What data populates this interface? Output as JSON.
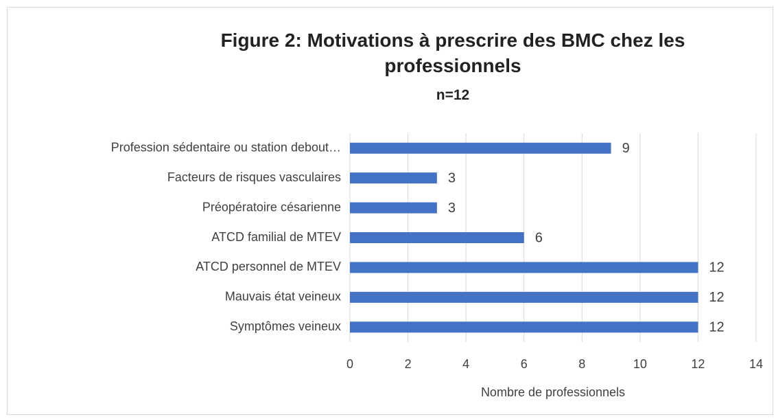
{
  "chart_data": {
    "type": "barh",
    "title": "Figure 2: Motivations à prescrire des BMC chez les professionnels",
    "subtitle": "n=12",
    "xlabel": "Nombre de professionnels",
    "categories": [
      "Profession sédentaire ou station debout…",
      "Facteurs de risques vasculaires",
      "Préopératoire césarienne",
      "ATCD familial de MTEV",
      "ATCD personnel de MTEV",
      "Mauvais état veineux",
      "Symptômes veineux"
    ],
    "values": [
      9,
      3,
      3,
      6,
      12,
      12,
      12
    ],
    "color": "#4472c4",
    "xlim": [
      0,
      14
    ],
    "xticks": [
      0,
      2,
      4,
      6,
      8,
      10,
      12,
      14
    ],
    "grid": true
  }
}
